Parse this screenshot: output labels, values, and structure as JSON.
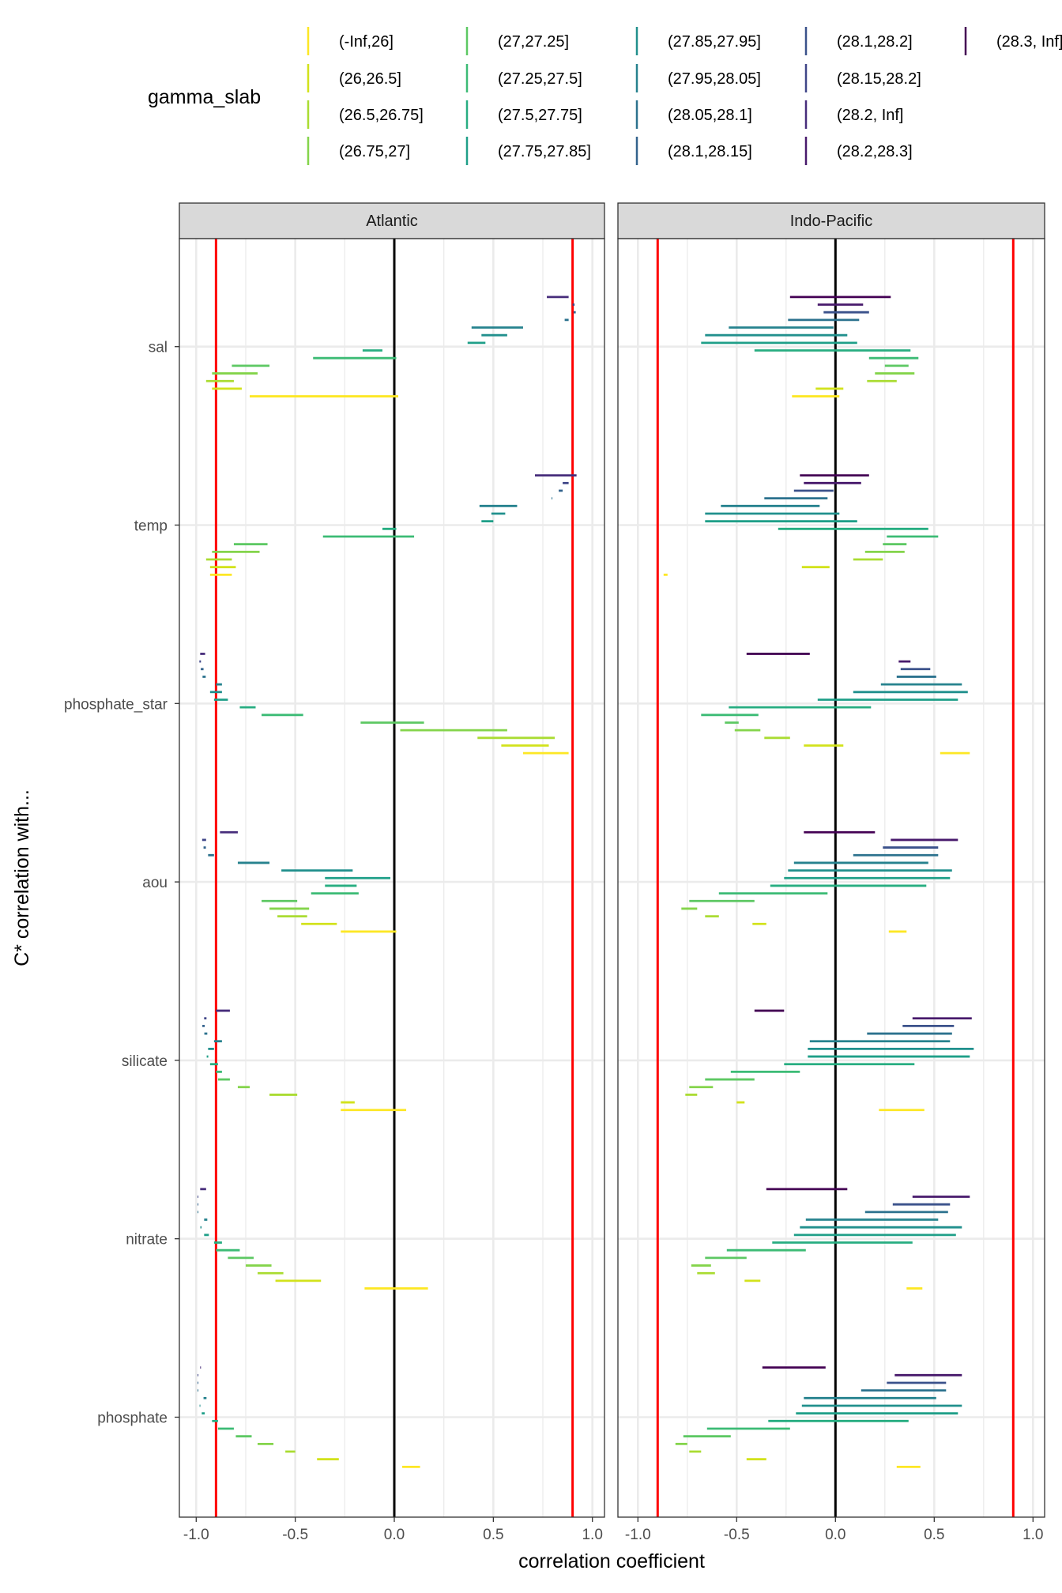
{
  "chart_data": {
    "type": "range-segments",
    "xlabel": "correlation coefficient",
    "ylabel": "C* correlation with...",
    "xlim": [
      -1.0,
      1.0
    ],
    "x_ticks": [
      "-1.0",
      "-0.5",
      "0.0",
      "0.5",
      "1.0"
    ],
    "x_tick_values": [
      -1.0,
      -0.5,
      0.0,
      0.5,
      1.0
    ],
    "grid": true,
    "reference_lines": [
      {
        "x": -0.9,
        "color": "#FF0000"
      },
      {
        "x": 0.9,
        "color": "#FF0000"
      },
      {
        "x": 0.0,
        "color": "#000000"
      }
    ],
    "variables": [
      "sal",
      "temp",
      "phosphate_star",
      "aou",
      "silicate",
      "nitrate",
      "phosphate"
    ],
    "legend": {
      "title": "gamma_slab",
      "placement": "top",
      "entries": [
        {
          "label": "(-Inf,26]",
          "color": "#FDE725"
        },
        {
          "label": "(26,26.5]",
          "color": "#D2E21B"
        },
        {
          "label": "(26.5,26.75]",
          "color": "#AADC32"
        },
        {
          "label": "(26.75,27]",
          "color": "#84D44B"
        },
        {
          "label": "(27,27.25]",
          "color": "#5DC863"
        },
        {
          "label": "(27.25,27.5]",
          "color": "#3CBB75"
        },
        {
          "label": "(27.5,27.75]",
          "color": "#27AD81"
        },
        {
          "label": "(27.75,27.85]",
          "color": "#1F9F88"
        },
        {
          "label": "(27.85,27.95]",
          "color": "#21908D"
        },
        {
          "label": "(27.95,28.05]",
          "color": "#26828E"
        },
        {
          "label": "(28.05,28.1]",
          "color": "#2C728E"
        },
        {
          "label": "(28.1,28.15]",
          "color": "#33638D"
        },
        {
          "label": "(28.1,28.2]",
          "color": "#3B528B"
        },
        {
          "label": "(28.15,28.2]",
          "color": "#404688"
        },
        {
          "label": "(28.2, Inf]",
          "color": "#472D7B"
        },
        {
          "label": "(28.2,28.3]",
          "color": "#481A6C"
        },
        {
          "label": "(28.3, Inf]",
          "color": "#440154"
        }
      ]
    },
    "panels": [
      {
        "name": "Atlantic",
        "slabs_top_to_bottom": [
          "(28.2, Inf]",
          "(28.15,28.2]",
          "(28.1,28.15]",
          "(28.05,28.1]",
          "(27.95,28.05]",
          "(27.85,27.95]",
          "(27.75,27.85]",
          "(27.5,27.75]",
          "(27.25,27.5]",
          "(27,27.25]",
          "(26.75,27]",
          "(26.5,26.75]",
          "(26,26.5]",
          "(-Inf,26]"
        ],
        "ranges": {
          "sal": [
            [
              0.77,
              0.88
            ],
            [
              0.9,
              0.91
            ],
            [
              0.905,
              0.916
            ],
            [
              0.86,
              0.88
            ],
            [
              0.39,
              0.65
            ],
            [
              0.44,
              0.57
            ],
            [
              0.37,
              0.46
            ],
            [
              -0.16,
              -0.06
            ],
            [
              -0.41,
              0.01
            ],
            [
              -0.82,
              -0.63
            ],
            [
              -0.92,
              -0.69
            ],
            [
              -0.95,
              -0.81
            ],
            [
              -0.92,
              -0.77
            ],
            [
              -0.73,
              0.02
            ]
          ],
          "temp": [
            [
              0.71,
              0.92
            ],
            [
              0.85,
              0.88
            ],
            [
              0.83,
              0.85
            ],
            [
              0.794,
              0.797
            ],
            [
              0.43,
              0.62
            ],
            [
              0.49,
              0.56
            ],
            [
              0.44,
              0.5
            ],
            [
              -0.06,
              0.01
            ],
            [
              -0.36,
              0.1
            ],
            [
              -0.81,
              -0.64
            ],
            [
              -0.92,
              -0.68
            ],
            [
              -0.95,
              -0.82
            ],
            [
              -0.93,
              -0.8
            ],
            [
              -0.93,
              -0.82
            ]
          ],
          "phosphate_star": [
            [
              -0.98,
              -0.955
            ],
            [
              -0.984,
              -0.976
            ],
            [
              -0.977,
              -0.963
            ],
            [
              -0.968,
              -0.952
            ],
            [
              -0.9,
              -0.87
            ],
            [
              -0.93,
              -0.87
            ],
            [
              -0.91,
              -0.84
            ],
            [
              -0.78,
              -0.7
            ],
            [
              -0.67,
              -0.46
            ],
            [
              -0.17,
              0.15
            ],
            [
              0.03,
              0.57
            ],
            [
              0.42,
              0.81
            ],
            [
              0.54,
              0.78
            ],
            [
              0.65,
              0.88
            ]
          ],
          "aou": [
            [
              -0.88,
              -0.79
            ],
            [
              -0.97,
              -0.95
            ],
            [
              -0.963,
              -0.951
            ],
            [
              -0.94,
              -0.91
            ],
            [
              -0.79,
              -0.63
            ],
            [
              -0.57,
              -0.21
            ],
            [
              -0.35,
              -0.02
            ],
            [
              -0.35,
              -0.19
            ],
            [
              -0.42,
              -0.18
            ],
            [
              -0.67,
              -0.49
            ],
            [
              -0.63,
              -0.43
            ],
            [
              -0.59,
              -0.44
            ],
            [
              -0.47,
              -0.29
            ],
            [
              -0.27,
              0.01
            ]
          ],
          "silicate": [
            [
              -0.9,
              -0.83
            ],
            [
              -0.96,
              -0.948
            ],
            [
              -0.969,
              -0.957
            ],
            [
              -0.959,
              -0.944
            ],
            [
              -0.91,
              -0.87
            ],
            [
              -0.94,
              -0.91
            ],
            [
              -0.947,
              -0.939
            ],
            [
              -0.93,
              -0.89
            ],
            [
              -0.9,
              -0.87
            ],
            [
              -0.89,
              -0.83
            ],
            [
              -0.79,
              -0.73
            ],
            [
              -0.63,
              -0.49
            ],
            [
              -0.27,
              -0.2
            ],
            [
              -0.27,
              0.06
            ]
          ],
          "nitrate": [
            [
              -0.98,
              -0.95
            ],
            [
              -0.993,
              -0.991
            ],
            [
              -0.993,
              -0.991
            ],
            [
              -0.993,
              -0.991
            ],
            [
              -0.96,
              -0.944
            ],
            [
              -0.979,
              -0.973
            ],
            [
              -0.96,
              -0.936
            ],
            [
              -0.91,
              -0.87
            ],
            [
              -0.9,
              -0.78
            ],
            [
              -0.84,
              -0.71
            ],
            [
              -0.75,
              -0.62
            ],
            [
              -0.69,
              -0.56
            ],
            [
              -0.6,
              -0.37
            ],
            [
              -0.15,
              0.17
            ]
          ],
          "phosphate": [
            [
              -0.98,
              -0.976
            ],
            [
              -0.993,
              -0.991
            ],
            [
              -0.993,
              -0.991
            ],
            [
              -0.993,
              -0.991
            ],
            [
              -0.963,
              -0.948
            ],
            [
              -0.983,
              -0.979
            ],
            [
              -0.972,
              -0.957
            ],
            [
              -0.92,
              -0.89
            ],
            [
              -0.89,
              -0.81
            ],
            [
              -0.8,
              -0.72
            ],
            [
              -0.69,
              -0.61
            ],
            [
              -0.55,
              -0.5
            ],
            [
              -0.39,
              -0.28
            ],
            [
              0.04,
              0.13
            ]
          ]
        }
      },
      {
        "name": "Indo-Pacific",
        "slabs_top_to_bottom": [
          "(28.3, Inf]",
          "(28.2,28.3]",
          "(28.1,28.2]",
          "(28.05,28.1]",
          "(27.95,28.05]",
          "(27.85,27.95]",
          "(27.75,27.85]",
          "(27.5,27.75]",
          "(27.25,27.5]",
          "(27,27.25]",
          "(26.75,27]",
          "(26.5,26.75]",
          "(26,26.5]",
          "(-Inf,26]"
        ],
        "ranges": {
          "sal": [
            [
              -0.23,
              0.28
            ],
            [
              -0.09,
              0.14
            ],
            [
              -0.06,
              0.17
            ],
            [
              -0.24,
              0.12
            ],
            [
              -0.54,
              -0.01
            ],
            [
              -0.66,
              0.06
            ],
            [
              -0.68,
              0.11
            ],
            [
              -0.41,
              0.38
            ],
            [
              0.17,
              0.42
            ],
            [
              0.25,
              0.37
            ],
            [
              0.2,
              0.4
            ],
            [
              0.16,
              0.31
            ],
            [
              -0.1,
              0.04
            ],
            [
              -0.22,
              0.02
            ]
          ],
          "temp": [
            [
              -0.18,
              0.17
            ],
            [
              -0.16,
              0.13
            ],
            [
              -0.21,
              -0.01
            ],
            [
              -0.36,
              -0.04
            ],
            [
              -0.58,
              -0.08
            ],
            [
              -0.66,
              0.02
            ],
            [
              -0.66,
              0.11
            ],
            [
              -0.29,
              0.47
            ],
            [
              0.26,
              0.52
            ],
            [
              0.24,
              0.36
            ],
            [
              0.15,
              0.35
            ],
            [
              0.09,
              0.24
            ],
            [
              -0.17,
              -0.03
            ],
            [
              -0.87,
              -0.85
            ]
          ],
          "phosphate_star": [
            [
              -0.45,
              -0.13
            ],
            [
              0.32,
              0.38
            ],
            [
              0.33,
              0.48
            ],
            [
              0.31,
              0.51
            ],
            [
              0.23,
              0.64
            ],
            [
              0.09,
              0.67
            ],
            [
              -0.09,
              0.62
            ],
            [
              -0.54,
              0.18
            ],
            [
              -0.68,
              -0.39
            ],
            [
              -0.56,
              -0.49
            ],
            [
              -0.51,
              -0.38
            ],
            [
              -0.36,
              -0.23
            ],
            [
              -0.16,
              0.04
            ],
            [
              0.53,
              0.68
            ]
          ],
          "aou": [
            [
              -0.16,
              0.2
            ],
            [
              0.28,
              0.62
            ],
            [
              0.24,
              0.52
            ],
            [
              0.09,
              0.52
            ],
            [
              -0.21,
              0.47
            ],
            [
              -0.24,
              0.59
            ],
            [
              -0.26,
              0.58
            ],
            [
              -0.33,
              0.46
            ],
            [
              -0.59,
              -0.04
            ],
            [
              -0.74,
              -0.41
            ],
            [
              -0.78,
              -0.7
            ],
            [
              -0.66,
              -0.59
            ],
            [
              -0.42,
              -0.35
            ],
            [
              0.27,
              0.36
            ]
          ],
          "silicate": [
            [
              -0.41,
              -0.26
            ],
            [
              0.39,
              0.69
            ],
            [
              0.34,
              0.6
            ],
            [
              0.16,
              0.59
            ],
            [
              -0.13,
              0.58
            ],
            [
              -0.14,
              0.7
            ],
            [
              -0.14,
              0.68
            ],
            [
              -0.26,
              0.4
            ],
            [
              -0.53,
              -0.18
            ],
            [
              -0.66,
              -0.41
            ],
            [
              -0.74,
              -0.62
            ],
            [
              -0.76,
              -0.7
            ],
            [
              -0.5,
              -0.46
            ],
            [
              0.22,
              0.45
            ]
          ],
          "nitrate": [
            [
              -0.35,
              0.06
            ],
            [
              0.39,
              0.68
            ],
            [
              0.29,
              0.58
            ],
            [
              0.15,
              0.57
            ],
            [
              -0.15,
              0.52
            ],
            [
              -0.18,
              0.64
            ],
            [
              -0.21,
              0.61
            ],
            [
              -0.32,
              0.39
            ],
            [
              -0.55,
              -0.15
            ],
            [
              -0.66,
              -0.45
            ],
            [
              -0.73,
              -0.63
            ],
            [
              -0.7,
              -0.61
            ],
            [
              -0.46,
              -0.38
            ],
            [
              0.36,
              0.44
            ]
          ],
          "phosphate": [
            [
              -0.37,
              -0.05
            ],
            [
              0.3,
              0.64
            ],
            [
              0.26,
              0.56
            ],
            [
              0.13,
              0.56
            ],
            [
              -0.16,
              0.51
            ],
            [
              -0.17,
              0.64
            ],
            [
              -0.2,
              0.62
            ],
            [
              -0.34,
              0.37
            ],
            [
              -0.65,
              -0.23
            ],
            [
              -0.77,
              -0.53
            ],
            [
              -0.81,
              -0.75
            ],
            [
              -0.74,
              -0.68
            ],
            [
              -0.45,
              -0.35
            ],
            [
              0.31,
              0.43
            ]
          ]
        }
      }
    ]
  }
}
